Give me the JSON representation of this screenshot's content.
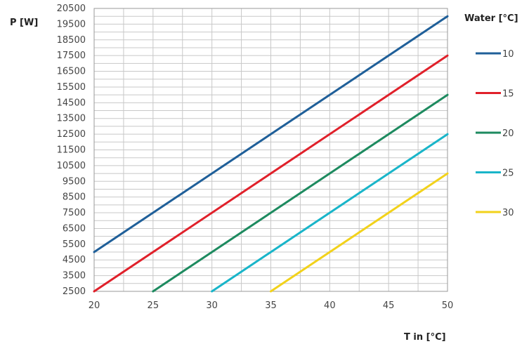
{
  "chart_data": {
    "type": "line",
    "ylabel": "P [W]",
    "xlabel": "T in [°C]",
    "legend_title": "Water [°C]",
    "legend_position": "right",
    "grid": true,
    "xlim": [
      20,
      50
    ],
    "ylim": [
      2500,
      20500
    ],
    "x_ticks": [
      "20",
      "25",
      "30",
      "35",
      "40",
      "45",
      "50"
    ],
    "y_ticks": [
      "2500",
      "3500",
      "4500",
      "5500",
      "6500",
      "7500",
      "8500",
      "9500",
      "10500",
      "11500",
      "12500",
      "13500",
      "14500",
      "15500",
      "16500",
      "17500",
      "18500",
      "19500",
      "20500"
    ],
    "x_grid_step": 2.5,
    "y_grid_step": 500,
    "series": [
      {
        "name": "10",
        "color": "#1f5f99",
        "points": [
          [
            20,
            5000
          ],
          [
            50,
            20000
          ]
        ]
      },
      {
        "name": "15",
        "color": "#e0202a",
        "points": [
          [
            20,
            2500
          ],
          [
            50,
            17500
          ]
        ]
      },
      {
        "name": "20",
        "color": "#1d8a5f",
        "points": [
          [
            25,
            2500
          ],
          [
            50,
            15000
          ]
        ]
      },
      {
        "name": "25",
        "color": "#19b5c9",
        "points": [
          [
            30,
            2500
          ],
          [
            50,
            12500
          ]
        ]
      },
      {
        "name": "30",
        "color": "#f2d21b",
        "points": [
          [
            35,
            2500
          ],
          [
            50,
            10000
          ]
        ]
      }
    ]
  }
}
